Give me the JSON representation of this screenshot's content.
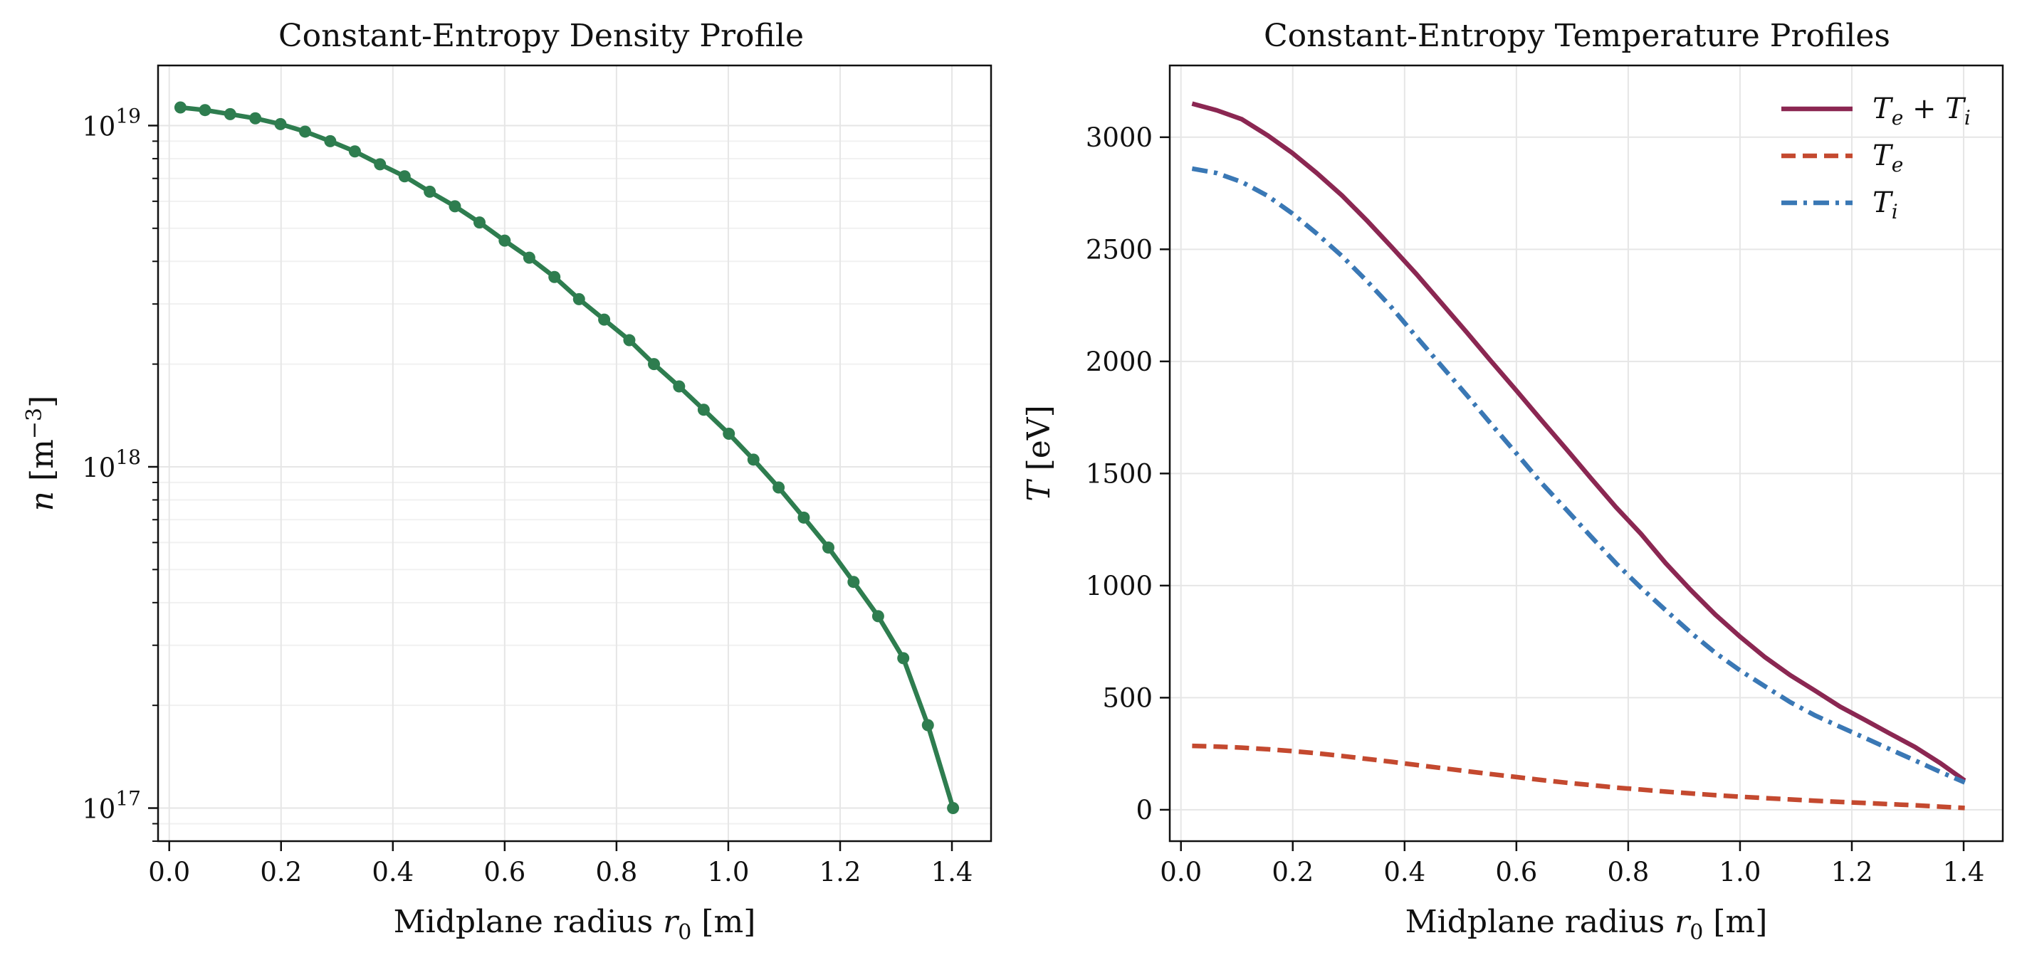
{
  "chart_data": [
    {
      "type": "line",
      "title": "Constant-Entropy Density Profile",
      "xlabel": "Midplane radius r₀ [m]",
      "ylabel": "n [m⁻³]",
      "xlim": [
        -0.02,
        1.47
      ],
      "ylim": [
        8e+16,
        1.5e+19
      ],
      "yscale": "log",
      "grid": true,
      "markers": true,
      "color": "#2e7d4f",
      "x_ticks": [
        "0.0",
        "0.2",
        "0.4",
        "0.6",
        "0.8",
        "1.0",
        "1.2",
        "1.4"
      ],
      "y_ticks": [
        {
          "value": 1e+17,
          "base": "10",
          "exp": "17"
        },
        {
          "value": 1e+18,
          "base": "10",
          "exp": "18"
        },
        {
          "value": 1e+19,
          "base": "10",
          "exp": "19"
        }
      ],
      "series": [
        {
          "x": [
            0.02,
            0.064,
            0.109,
            0.154,
            0.199,
            0.243,
            0.288,
            0.332,
            0.377,
            0.421,
            0.466,
            0.511,
            0.555,
            0.6,
            0.644,
            0.689,
            0.733,
            0.778,
            0.823,
            0.867,
            0.912,
            0.956,
            1.001,
            1.045,
            1.09,
            1.135,
            1.179,
            1.224,
            1.268,
            1.313,
            1.357,
            1.402
          ],
          "y": [
            1.13e+19,
            1.11e+19,
            1.08e+19,
            1.05e+19,
            1.01e+19,
            9.6e+18,
            9e+18,
            8.4e+18,
            7.7e+18,
            7.1e+18,
            6.4e+18,
            5.8e+18,
            5.2e+18,
            4.6e+18,
            4.1e+18,
            3.6e+18,
            3.1e+18,
            2.7e+18,
            2.35e+18,
            2e+18,
            1.72e+18,
            1.47e+18,
            1.25e+18,
            1.05e+18,
            8.7e+17,
            7.1e+17,
            5.8e+17,
            4.6e+17,
            3.65e+17,
            2.75e+17,
            1.75e+17,
            1e+17
          ]
        }
      ]
    },
    {
      "type": "line",
      "title": "Constant-Entropy Temperature Profiles",
      "xlabel": "Midplane radius r₀ [m]",
      "ylabel": "T [eV]",
      "xlim": [
        -0.02,
        1.47
      ],
      "ylim": [
        -140,
        3320
      ],
      "yscale": "linear",
      "grid": true,
      "legend": "top-right",
      "x_ticks": [
        "0.0",
        "0.2",
        "0.4",
        "0.6",
        "0.8",
        "1.0",
        "1.2",
        "1.4"
      ],
      "y_ticks": [
        "0",
        "500",
        "1000",
        "1500",
        "2000",
        "2500",
        "3000"
      ],
      "x": [
        0.02,
        0.064,
        0.109,
        0.154,
        0.199,
        0.243,
        0.288,
        0.332,
        0.377,
        0.421,
        0.466,
        0.511,
        0.555,
        0.6,
        0.644,
        0.689,
        0.733,
        0.778,
        0.823,
        0.867,
        0.912,
        0.956,
        1.001,
        1.045,
        1.09,
        1.135,
        1.179,
        1.224,
        1.268,
        1.313,
        1.357,
        1.402
      ],
      "series": [
        {
          "name": "T_e + T_i",
          "color": "#8b2752",
          "dash": "solid",
          "values": [
            3150,
            3120,
            3080,
            3010,
            2930,
            2840,
            2740,
            2630,
            2510,
            2390,
            2260,
            2130,
            2000,
            1870,
            1740,
            1610,
            1480,
            1350,
            1230,
            1100,
            980,
            870,
            770,
            680,
            600,
            530,
            460,
            400,
            340,
            280,
            210,
            130
          ]
        },
        {
          "name": "T_e",
          "color": "#c4492f",
          "dash": "dashed",
          "values": [
            285,
            282,
            277,
            270,
            262,
            252,
            240,
            227,
            214,
            200,
            186,
            172,
            159,
            146,
            133,
            121,
            110,
            99,
            90,
            81,
            73,
            65,
            58,
            52,
            46,
            40,
            35,
            30,
            25,
            20,
            14,
            8
          ]
        },
        {
          "name": "T_i",
          "color": "#3a78b5",
          "dash": "dashdot",
          "values": [
            2860,
            2840,
            2800,
            2740,
            2660,
            2570,
            2470,
            2360,
            2240,
            2110,
            1980,
            1850,
            1720,
            1590,
            1460,
            1340,
            1220,
            1100,
            990,
            890,
            790,
            700,
            620,
            550,
            480,
            420,
            370,
            320,
            270,
            220,
            170,
            122
          ]
        }
      ],
      "legend_entries": [
        {
          "base": "T",
          "sub": "e",
          "op": " + ",
          "base2": "T",
          "sub2": "i"
        },
        {
          "base": "T",
          "sub": "e"
        },
        {
          "base": "T",
          "sub": "i"
        }
      ]
    }
  ]
}
